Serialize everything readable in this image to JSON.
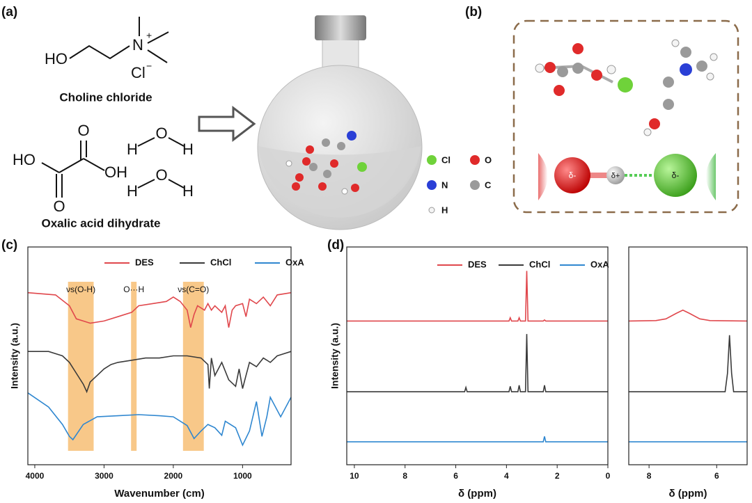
{
  "panel_labels": [
    "(a)",
    "(b)",
    "(c)",
    "(d)"
  ],
  "panel_a": {
    "choline_atoms": [
      "HO",
      "N",
      "+",
      "Cl",
      "−"
    ],
    "choline_name": "Choline chloride",
    "oxalic_atoms": [
      "O",
      "HO",
      "OH",
      "O"
    ],
    "water_1": [
      "H",
      "O",
      "H"
    ],
    "water_2": [
      "H",
      "O",
      "H"
    ],
    "oxalic_name": "Oxalic acid dihydrate",
    "atom_legend": [
      {
        "label": "Cl",
        "color": "#6fd23a"
      },
      {
        "label": "O",
        "color": "#e02a2a"
      },
      {
        "label": "N",
        "color": "#2a3fd6"
      },
      {
        "label": "C",
        "color": "#9a9a9a"
      },
      {
        "label": "H",
        "color": "#f4f4f4"
      }
    ]
  },
  "panel_b": {
    "charges": [
      "δ-",
      "δ+",
      "δ-"
    ]
  },
  "chart_data": [
    {
      "type": "line",
      "xlabel": "Wavenumber (cm)",
      "ylabel": "Intensity (a.u.)",
      "xlim": [
        4100,
        300
      ],
      "ylim": [
        0,
        10
      ],
      "xticks": [
        4000,
        3000,
        2000,
        1000
      ],
      "bands": [
        [
          3520,
          3150
        ],
        [
          2610,
          2530
        ],
        [
          1860,
          1560
        ]
      ],
      "band_labels": [
        "νs(O-H)",
        "O···H",
        "νs(C=O)"
      ],
      "band_color": "#f5b561",
      "series": [
        {
          "name": "DES",
          "color": "#e0474c",
          "x": [
            4100,
            3700,
            3500,
            3400,
            3300,
            3200,
            3000,
            2800,
            2600,
            2500,
            2300,
            2100,
            2000,
            1900,
            1800,
            1750,
            1700,
            1650,
            1550,
            1500,
            1450,
            1400,
            1300,
            1250,
            1200,
            1150,
            1100,
            1000,
            950,
            900,
            800,
            700,
            600,
            500,
            300
          ],
          "values": [
            7.9,
            7.8,
            7.3,
            6.7,
            6.6,
            6.5,
            6.6,
            6.8,
            7.0,
            7.3,
            7.4,
            7.5,
            7.7,
            7.5,
            7.1,
            6.3,
            6.9,
            7.3,
            7.1,
            7.4,
            7.1,
            7.3,
            7.0,
            7.3,
            6.3,
            7.1,
            7.3,
            7.4,
            6.8,
            7.6,
            7.4,
            7.7,
            7.3,
            7.8,
            7.9
          ]
        },
        {
          "name": "ChCl",
          "color": "#3a3a3a",
          "x": [
            4100,
            3800,
            3600,
            3500,
            3400,
            3300,
            3250,
            3200,
            3100,
            3000,
            2900,
            2800,
            2600,
            2400,
            2200,
            2000,
            1800,
            1600,
            1500,
            1480,
            1450,
            1400,
            1300,
            1200,
            1100,
            1050,
            1000,
            950,
            900,
            800,
            700,
            600,
            500,
            300
          ],
          "values": [
            5.2,
            5.2,
            5.0,
            4.7,
            4.2,
            3.7,
            3.35,
            3.8,
            4.1,
            4.4,
            4.6,
            4.7,
            4.8,
            4.9,
            4.9,
            5.0,
            5.0,
            4.9,
            4.6,
            3.5,
            4.9,
            4.1,
            4.7,
            3.9,
            3.6,
            4.4,
            3.5,
            4.1,
            4.7,
            4.5,
            4.9,
            4.7,
            5.0,
            5.2
          ]
        },
        {
          "name": "OxA",
          "color": "#2f87d0",
          "x": [
            4100,
            3800,
            3600,
            3500,
            3450,
            3300,
            3100,
            2800,
            2500,
            2200,
            2000,
            1800,
            1700,
            1600,
            1500,
            1400,
            1300,
            1250,
            1100,
            1000,
            900,
            800,
            720,
            650,
            600,
            450,
            300
          ],
          "values": [
            3.3,
            2.65,
            1.85,
            1.3,
            1.15,
            1.85,
            2.2,
            2.25,
            2.3,
            2.25,
            2.2,
            1.8,
            1.2,
            1.55,
            1.85,
            1.7,
            1.35,
            2.0,
            1.7,
            0.9,
            1.55,
            2.9,
            1.3,
            2.2,
            3.1,
            2.2,
            3.1
          ]
        }
      ]
    },
    {
      "type": "line",
      "xlabel": "δ (ppm)",
      "ylabel": "Intensity (a.u.)",
      "xlim": [
        10.3,
        0
      ],
      "ylim": [
        0,
        10
      ],
      "xticks": [
        10,
        8,
        6,
        4,
        2,
        0
      ],
      "series": [
        {
          "name": "DES",
          "color": "#e0474c",
          "x": [
            10.3,
            3.9,
            3.85,
            3.8,
            3.55,
            3.5,
            3.45,
            3.25,
            3.2,
            3.15,
            2.55,
            2.5,
            2.45,
            0
          ],
          "values": [
            6.6,
            6.6,
            6.75,
            6.6,
            6.6,
            6.75,
            6.6,
            6.6,
            8.9,
            6.6,
            6.6,
            6.65,
            6.6,
            6.6
          ]
        },
        {
          "name": "ChCl",
          "color": "#3a3a3a",
          "x": [
            10.3,
            5.65,
            5.6,
            5.55,
            3.9,
            3.85,
            3.8,
            3.55,
            3.5,
            3.45,
            3.25,
            3.2,
            3.15,
            2.55,
            2.5,
            2.45,
            0
          ],
          "values": [
            3.35,
            3.35,
            3.55,
            3.35,
            3.35,
            3.6,
            3.35,
            3.35,
            3.65,
            3.35,
            3.35,
            6.0,
            3.35,
            3.35,
            3.65,
            3.35,
            3.35
          ]
        },
        {
          "name": "OxA",
          "color": "#2f87d0",
          "x": [
            10.3,
            2.55,
            2.5,
            2.45,
            0
          ],
          "values": [
            1.05,
            1.05,
            1.3,
            1.05,
            1.05
          ]
        }
      ]
    },
    {
      "type": "line",
      "xlabel": "δ (ppm)",
      "xlim": [
        8.6,
        5.1
      ],
      "ylim": [
        0,
        10
      ],
      "xticks": [
        8,
        6
      ],
      "series": [
        {
          "color": "#e0474c",
          "x": [
            8.6,
            7.8,
            7.5,
            7.2,
            7.0,
            6.8,
            6.5,
            6.2,
            5.1
          ],
          "values": [
            6.6,
            6.62,
            6.7,
            6.95,
            7.1,
            6.95,
            6.7,
            6.62,
            6.6
          ]
        },
        {
          "color": "#3a3a3a",
          "x": [
            8.6,
            5.75,
            5.68,
            5.62,
            5.56,
            5.5,
            5.1
          ],
          "values": [
            3.35,
            3.35,
            4.2,
            5.95,
            4.2,
            3.35,
            3.35
          ]
        },
        {
          "color": "#2f87d0",
          "x": [
            8.6,
            5.1
          ],
          "values": [
            1.05,
            1.05
          ]
        }
      ]
    }
  ]
}
